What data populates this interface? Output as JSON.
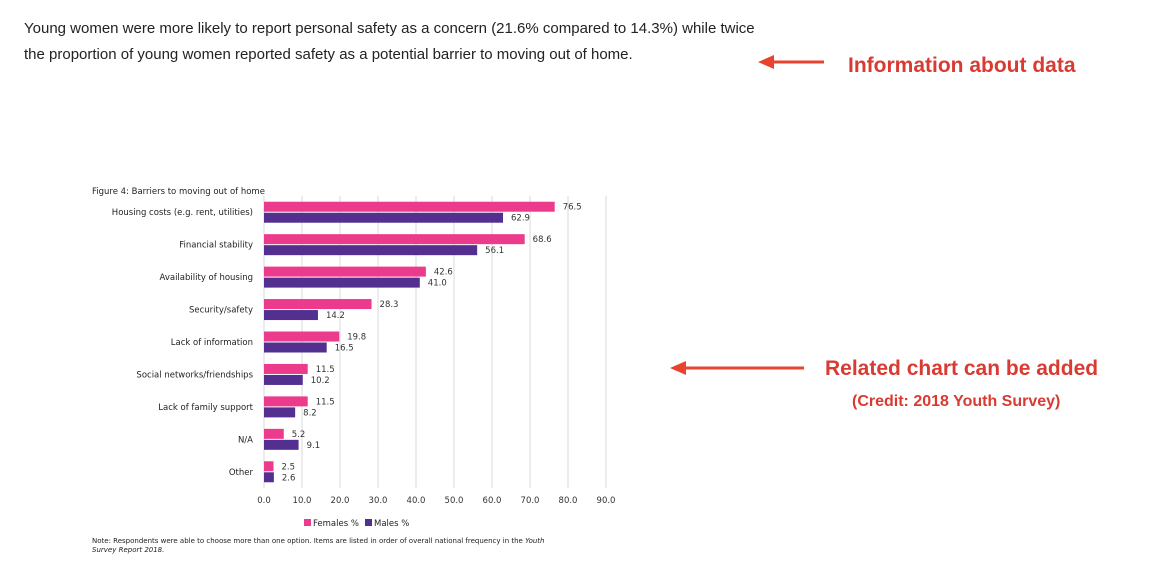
{
  "intro": {
    "text": "Young women were more likely to report personal safety as a concern (21.6% compared to 14.3%) while twice the proportion of young women reported safety as a potential barrier to moving out of home."
  },
  "annotations": {
    "info": "Information about data",
    "chart_added": "Related chart can be added",
    "credit": "(Credit: 2018 Youth Survey)",
    "arrow_color": "#e8432f"
  },
  "chart_data": {
    "type": "bar",
    "orientation": "horizontal",
    "title": "Figure 4: Barriers to moving out of home",
    "categories": [
      "Housing costs (e.g. rent, utilities)",
      "Financial stability",
      "Availability of housing",
      "Security/safety",
      "Lack of information",
      "Social networks/friendships",
      "Lack of family support",
      "N/A",
      "Other"
    ],
    "series": [
      {
        "name": "Females %",
        "color": "#ec3a8c",
        "values": [
          76.5,
          68.6,
          42.6,
          28.3,
          19.8,
          11.5,
          11.5,
          5.2,
          2.5
        ]
      },
      {
        "name": "Males %",
        "color": "#53308f",
        "values": [
          62.9,
          56.1,
          41.0,
          14.2,
          16.5,
          10.2,
          8.2,
          9.1,
          2.6
        ]
      }
    ],
    "xlim": [
      0,
      90
    ],
    "x_ticks": [
      "0.0",
      "10.0",
      "20.0",
      "30.0",
      "40.0",
      "50.0",
      "60.0",
      "70.0",
      "80.0",
      "90.0"
    ],
    "grid": true,
    "legend_position": "bottom-center",
    "note": "Note: Respondents were able to choose more than one option. Items are listed in order of overall national frequency in the",
    "note_italic": "Youth Survey Report 2018."
  }
}
